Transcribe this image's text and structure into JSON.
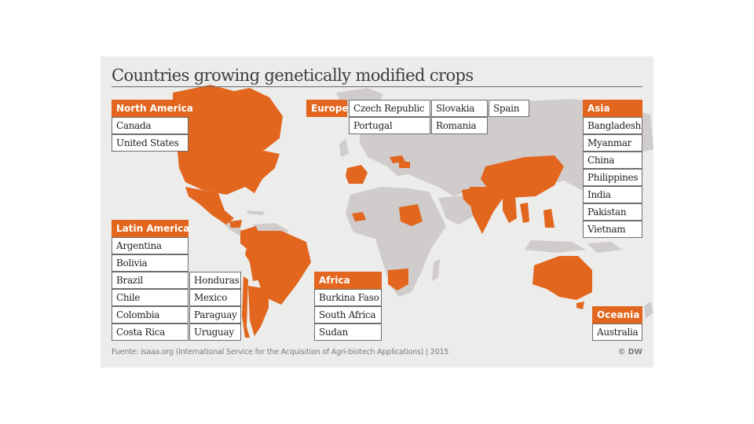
{
  "title": "Countries growing genetically modified crops",
  "source": "Fuente: isaaa.org (International Service for the Acquisition of Agri-biotech Applications) | 2015",
  "credit": "© DW",
  "colors": {
    "highlight": "#e2661d",
    "land": "#cfcccb",
    "background": "#ececeb"
  },
  "regions": {
    "north_america": {
      "label": "North America",
      "countries": [
        "Canada",
        "United States"
      ]
    },
    "latin_america": {
      "label": "Latin America",
      "countries": [
        "Argentina",
        "Bolivia",
        "Brazil",
        "Chile",
        "Colombia",
        "Costa Rica",
        "Honduras",
        "Mexico",
        "Paraguay",
        "Uruguay"
      ]
    },
    "europe": {
      "label": "Europe",
      "countries": [
        "Czech Republic",
        "Portugal",
        "Slovakia",
        "Romania",
        "Spain"
      ]
    },
    "africa": {
      "label": "Africa",
      "countries": [
        "Burkina Faso",
        "South Africa",
        "Sudan"
      ]
    },
    "asia": {
      "label": "Asia",
      "countries": [
        "Bangladesh",
        "Myanmar",
        "China",
        "Philippines",
        "India",
        "Pakistan",
        "Vietnam"
      ]
    },
    "oceania": {
      "label": "Oceania",
      "countries": [
        "Australia"
      ]
    }
  }
}
